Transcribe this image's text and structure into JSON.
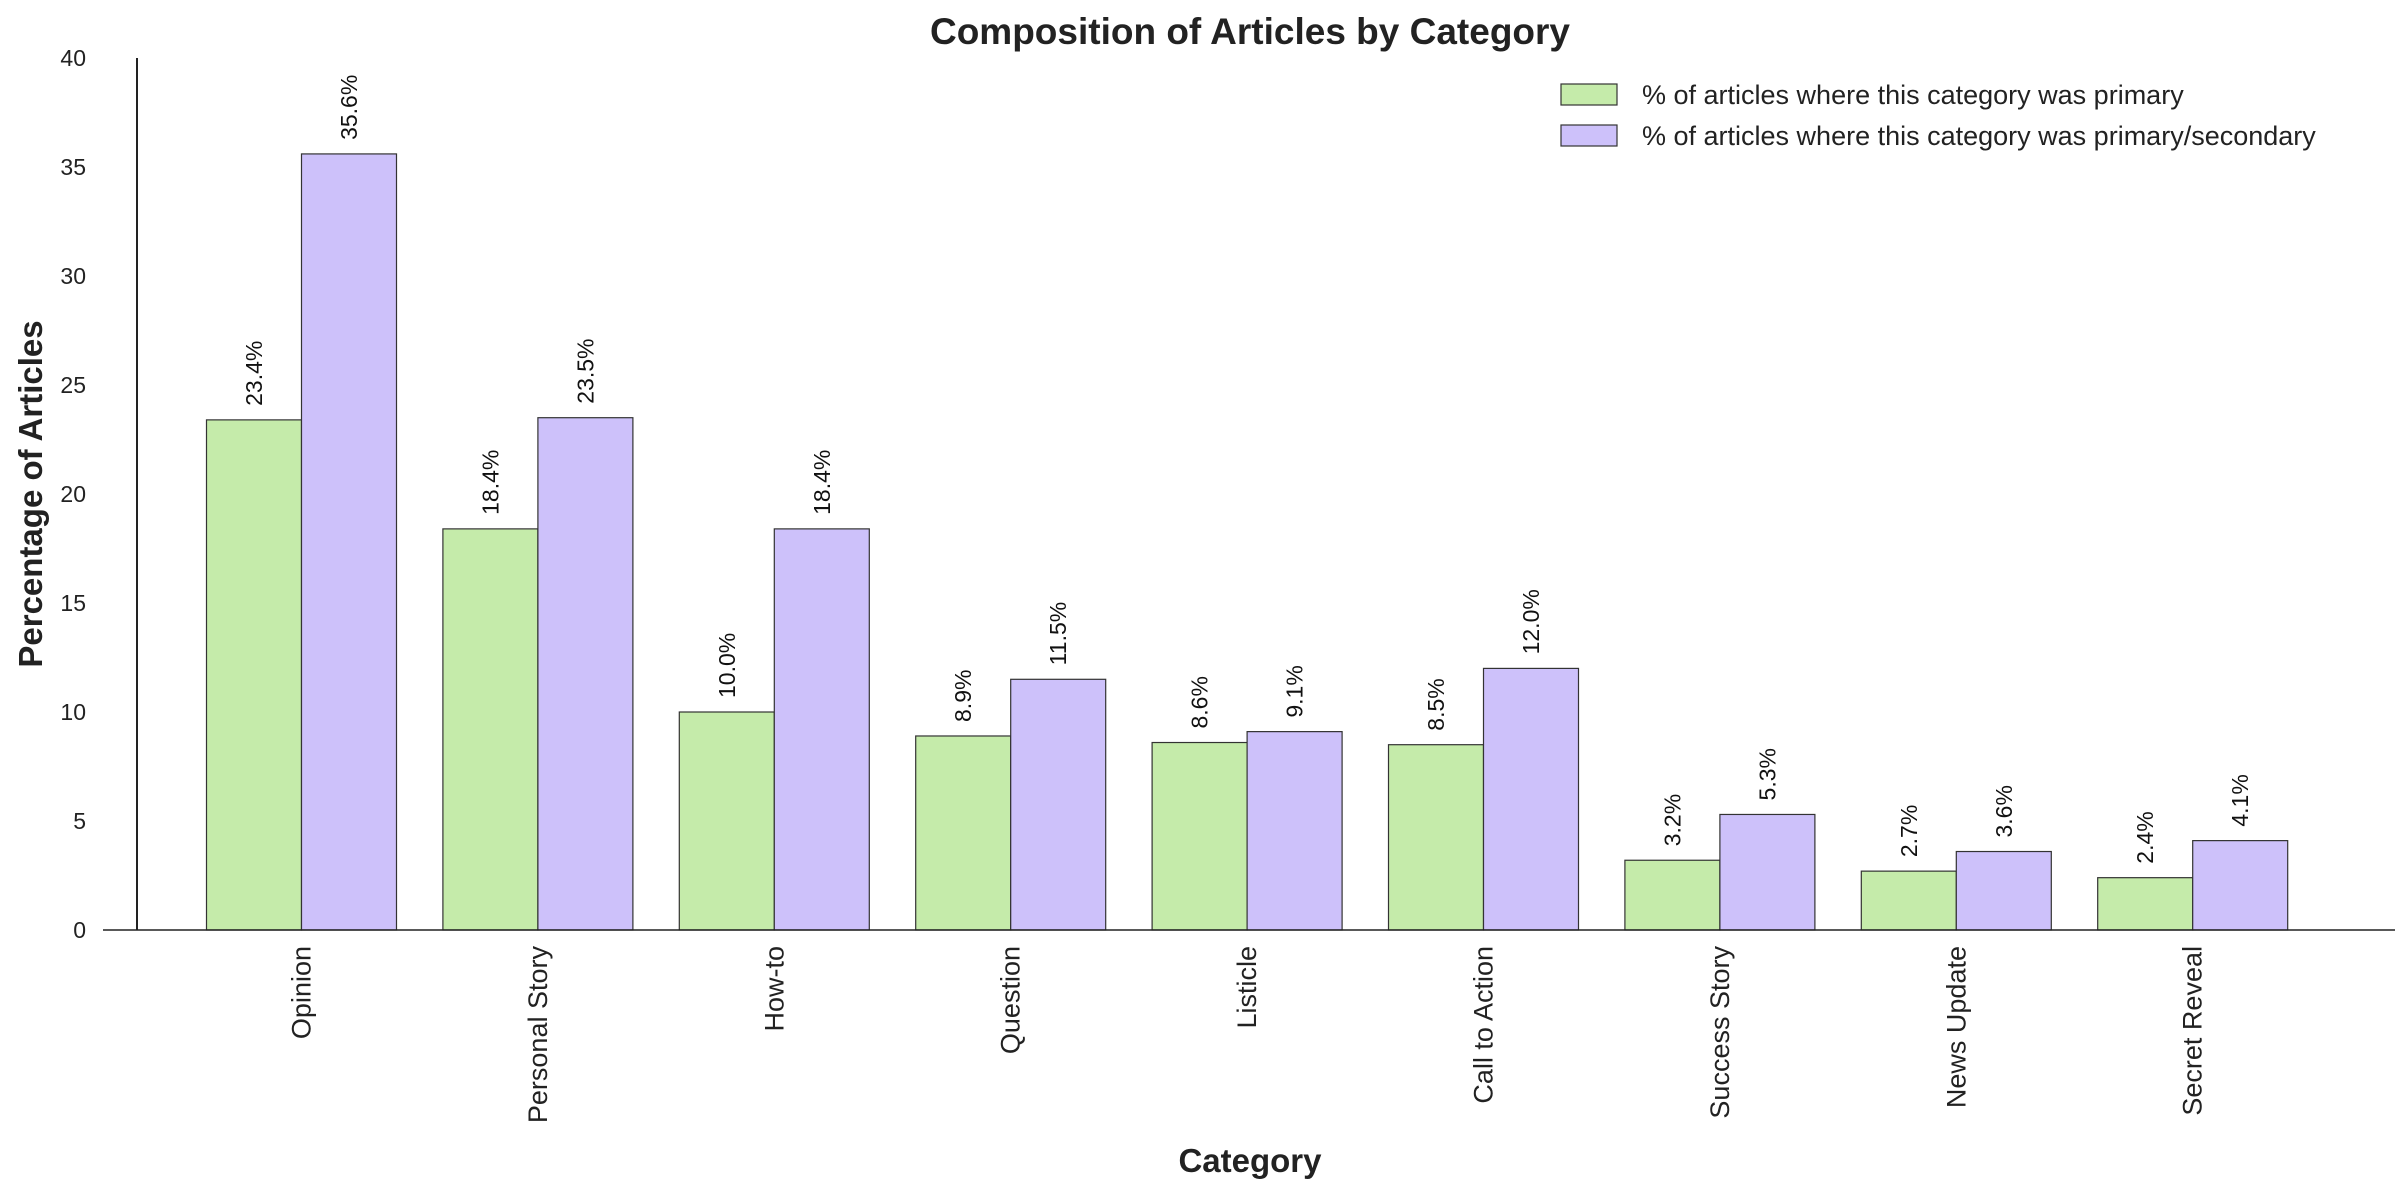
{
  "chart_data": {
    "type": "bar",
    "title": "Composition of Articles by Category",
    "xlabel": "Category",
    "ylabel": "Percentage of Articles",
    "ylim": [
      0,
      40
    ],
    "yticks": [
      "0",
      "5",
      "10",
      "15",
      "20",
      "25",
      "30",
      "35",
      "40"
    ],
    "categories": [
      "Opinion",
      "Personal Story",
      "How-to",
      "Question",
      "Listicle",
      "Call to Action",
      "Success Story",
      "News Update",
      "Secret Reveal"
    ],
    "series": [
      {
        "name": "% of articles where this category was primary",
        "color": "#c5ebaa",
        "values": [
          23.4,
          18.4,
          10.0,
          8.9,
          8.6,
          8.5,
          3.2,
          2.7,
          2.4
        ],
        "labels": [
          "23.4%",
          "18.4%",
          "10.0%",
          "8.9%",
          "8.6%",
          "8.5%",
          "3.2%",
          "2.7%",
          "2.4%"
        ]
      },
      {
        "name": "% of articles where this category was primary/secondary",
        "color": "#cdc1fa",
        "values": [
          35.6,
          23.5,
          18.4,
          11.5,
          9.1,
          12.0,
          5.3,
          3.6,
          4.1
        ],
        "labels": [
          "35.6%",
          "23.5%",
          "18.4%",
          "11.5%",
          "9.1%",
          "12.0%",
          "5.3%",
          "3.6%",
          "4.1%"
        ]
      }
    ],
    "grid": false,
    "legend_position": "top-right",
    "bar_edge_color": "#333333"
  }
}
